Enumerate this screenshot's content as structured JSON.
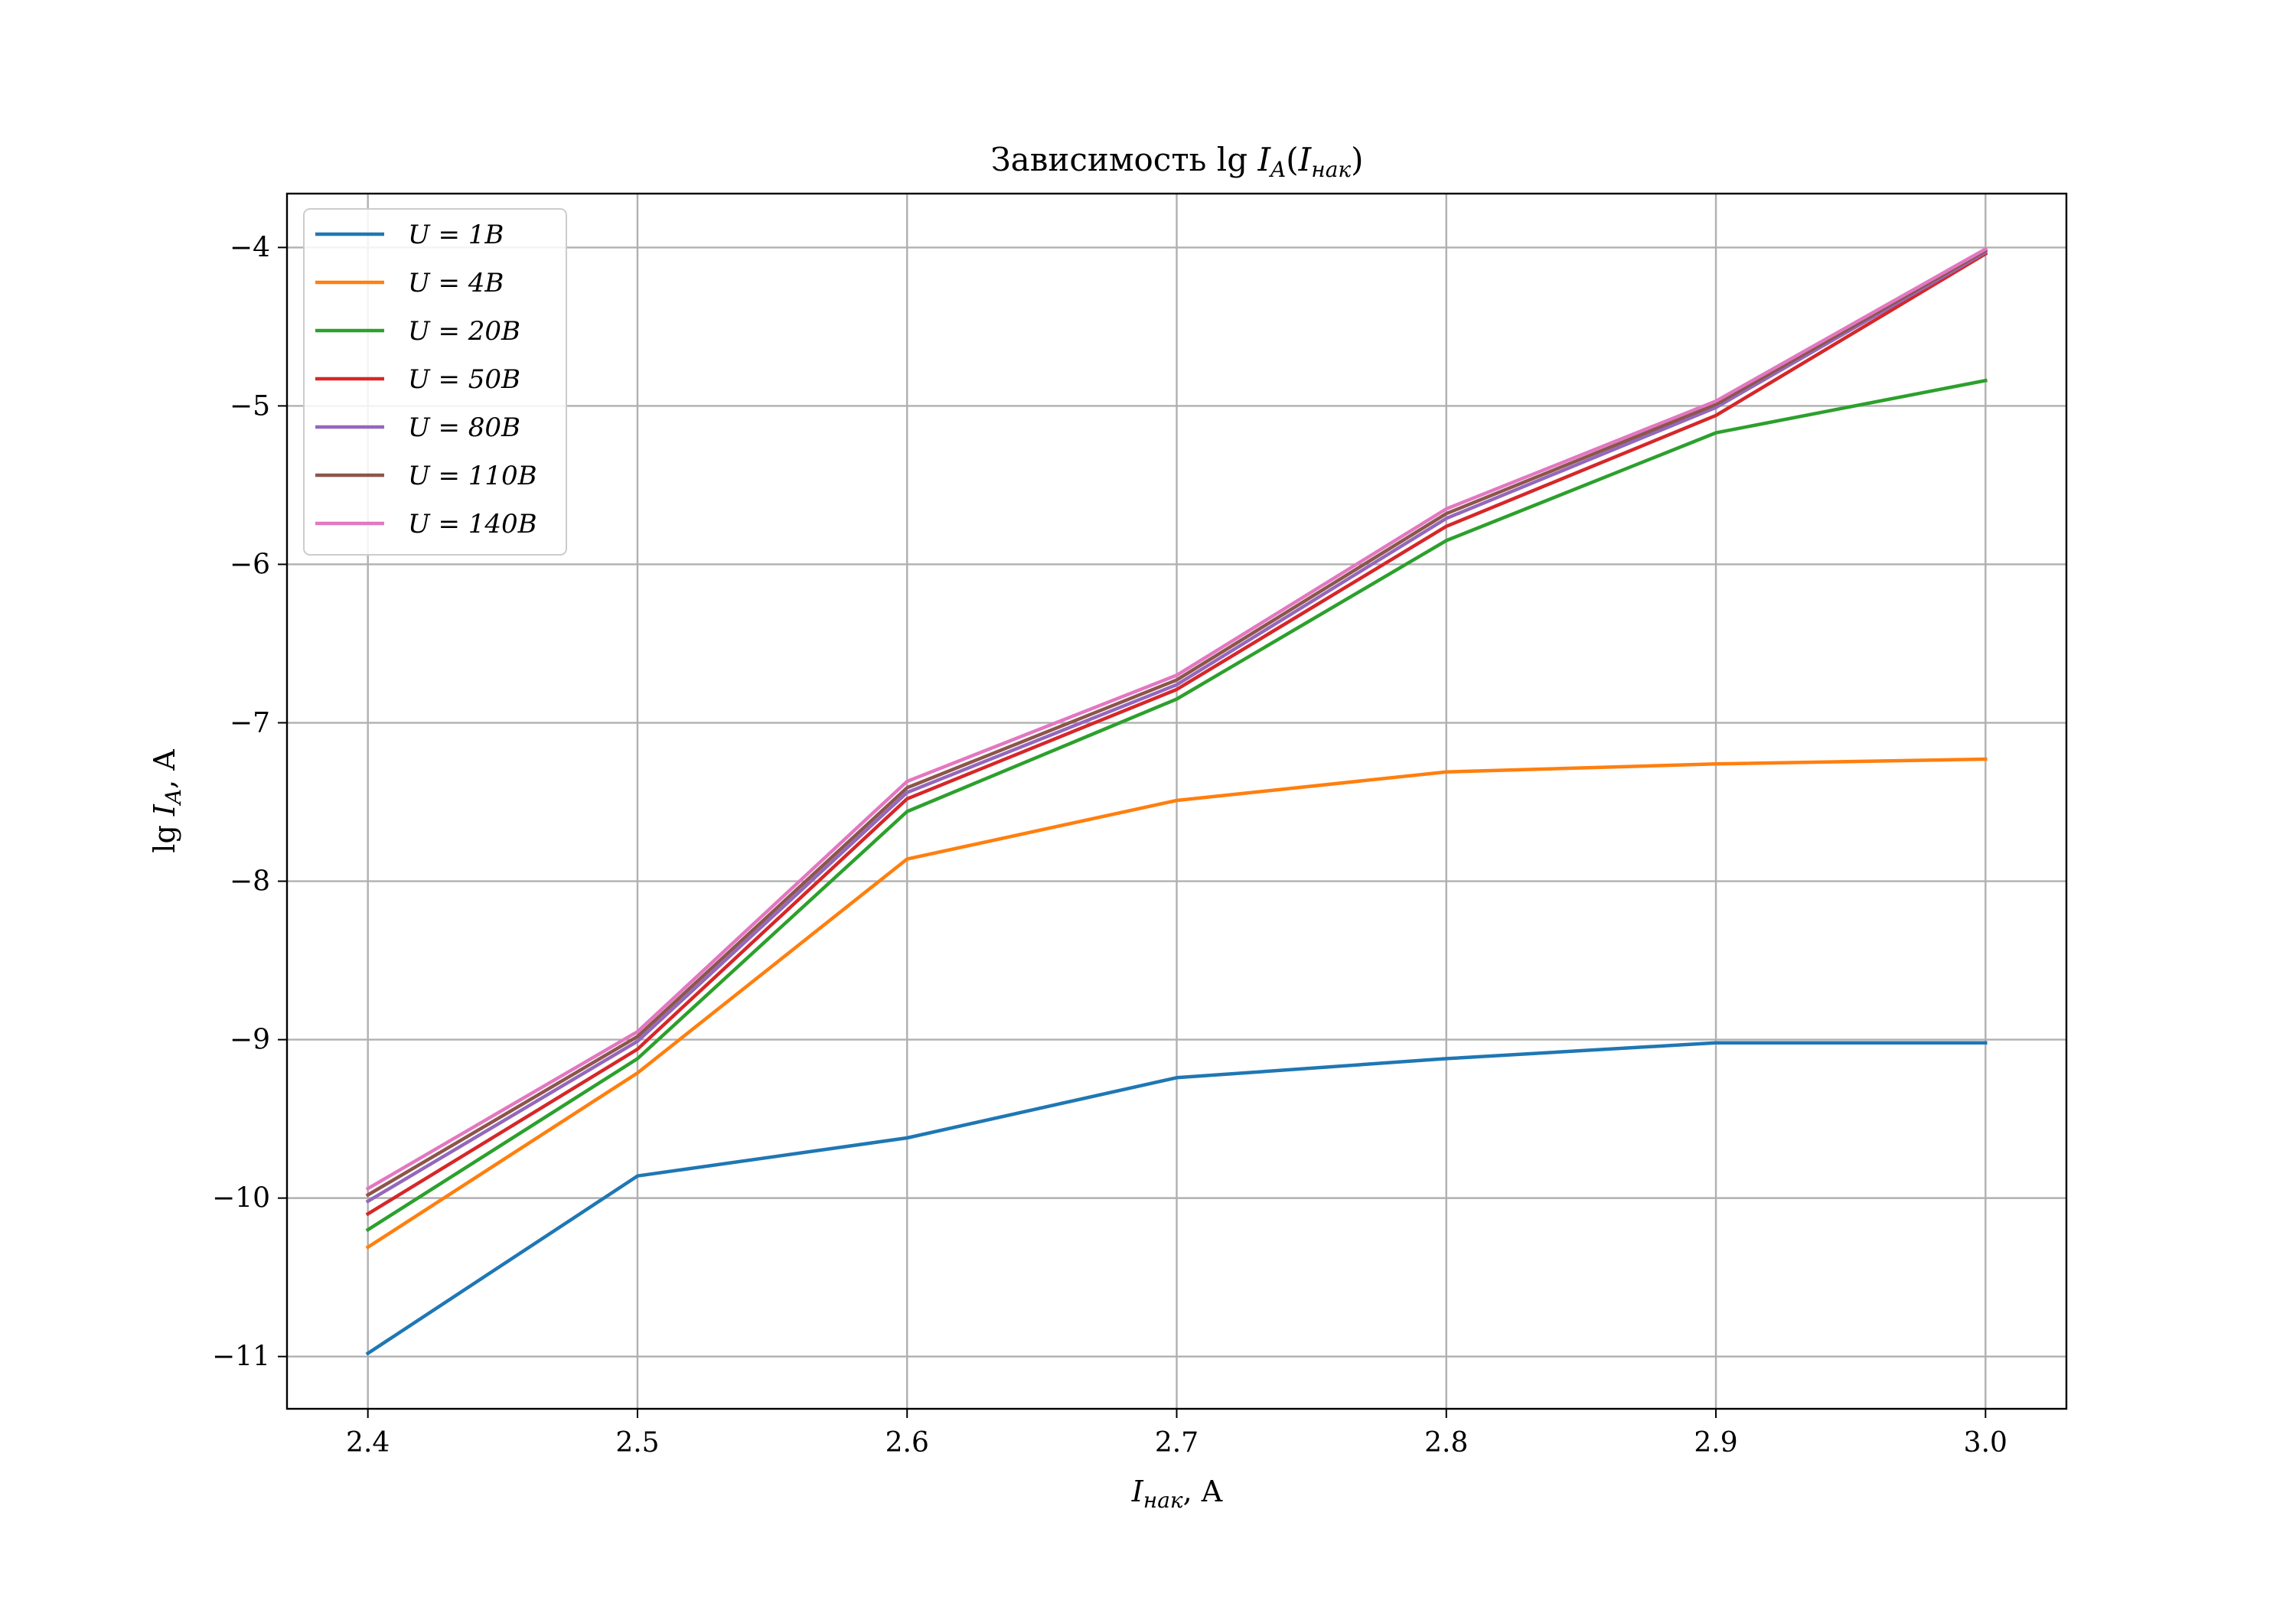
{
  "chart_data": {
    "type": "line",
    "title": "Зависимость lg I_A(I_нак)",
    "xlabel": "I_нак, A",
    "ylabel": "lg I_A, A",
    "x": [
      2.4,
      2.5,
      2.6,
      2.7,
      2.8,
      2.9,
      3.0
    ],
    "xlim": [
      2.37,
      3.03
    ],
    "ylim": [
      -11.33,
      -3.66
    ],
    "xticks": [
      "2.4",
      "2.5",
      "2.6",
      "2.7",
      "2.8",
      "2.9",
      "3.0"
    ],
    "yticks": [
      "−4",
      "−5",
      "−6",
      "−7",
      "−8",
      "−9",
      "−10",
      "−11"
    ],
    "grid": true,
    "legend_position": "top-left",
    "series": [
      {
        "name": "U = 1B",
        "color": "#1f77b4",
        "values": [
          -10.98,
          -9.86,
          -9.62,
          -9.24,
          -9.12,
          -9.02,
          -9.02
        ]
      },
      {
        "name": "U = 4B",
        "color": "#ff7f0e",
        "values": [
          -10.31,
          -9.21,
          -7.86,
          -7.49,
          -7.31,
          -7.26,
          -7.23
        ]
      },
      {
        "name": "U = 20B",
        "color": "#2ca02c",
        "values": [
          -10.2,
          -9.12,
          -7.56,
          -6.85,
          -5.85,
          -5.17,
          -4.84
        ]
      },
      {
        "name": "U = 50B",
        "color": "#d62728",
        "values": [
          -10.1,
          -9.06,
          -7.48,
          -6.79,
          -5.76,
          -5.06,
          -4.04
        ]
      },
      {
        "name": "U = 80B",
        "color": "#9467bd",
        "values": [
          -10.02,
          -9.01,
          -7.44,
          -6.76,
          -5.71,
          -5.01,
          -4.03
        ]
      },
      {
        "name": "U = 110B",
        "color": "#8c564b",
        "values": [
          -9.98,
          -8.98,
          -7.41,
          -6.73,
          -5.68,
          -4.99,
          -4.02
        ]
      },
      {
        "name": "U = 140B",
        "color": "#e377c2",
        "values": [
          -9.94,
          -8.95,
          -7.37,
          -6.7,
          -5.65,
          -4.97,
          -4.01
        ]
      }
    ]
  }
}
